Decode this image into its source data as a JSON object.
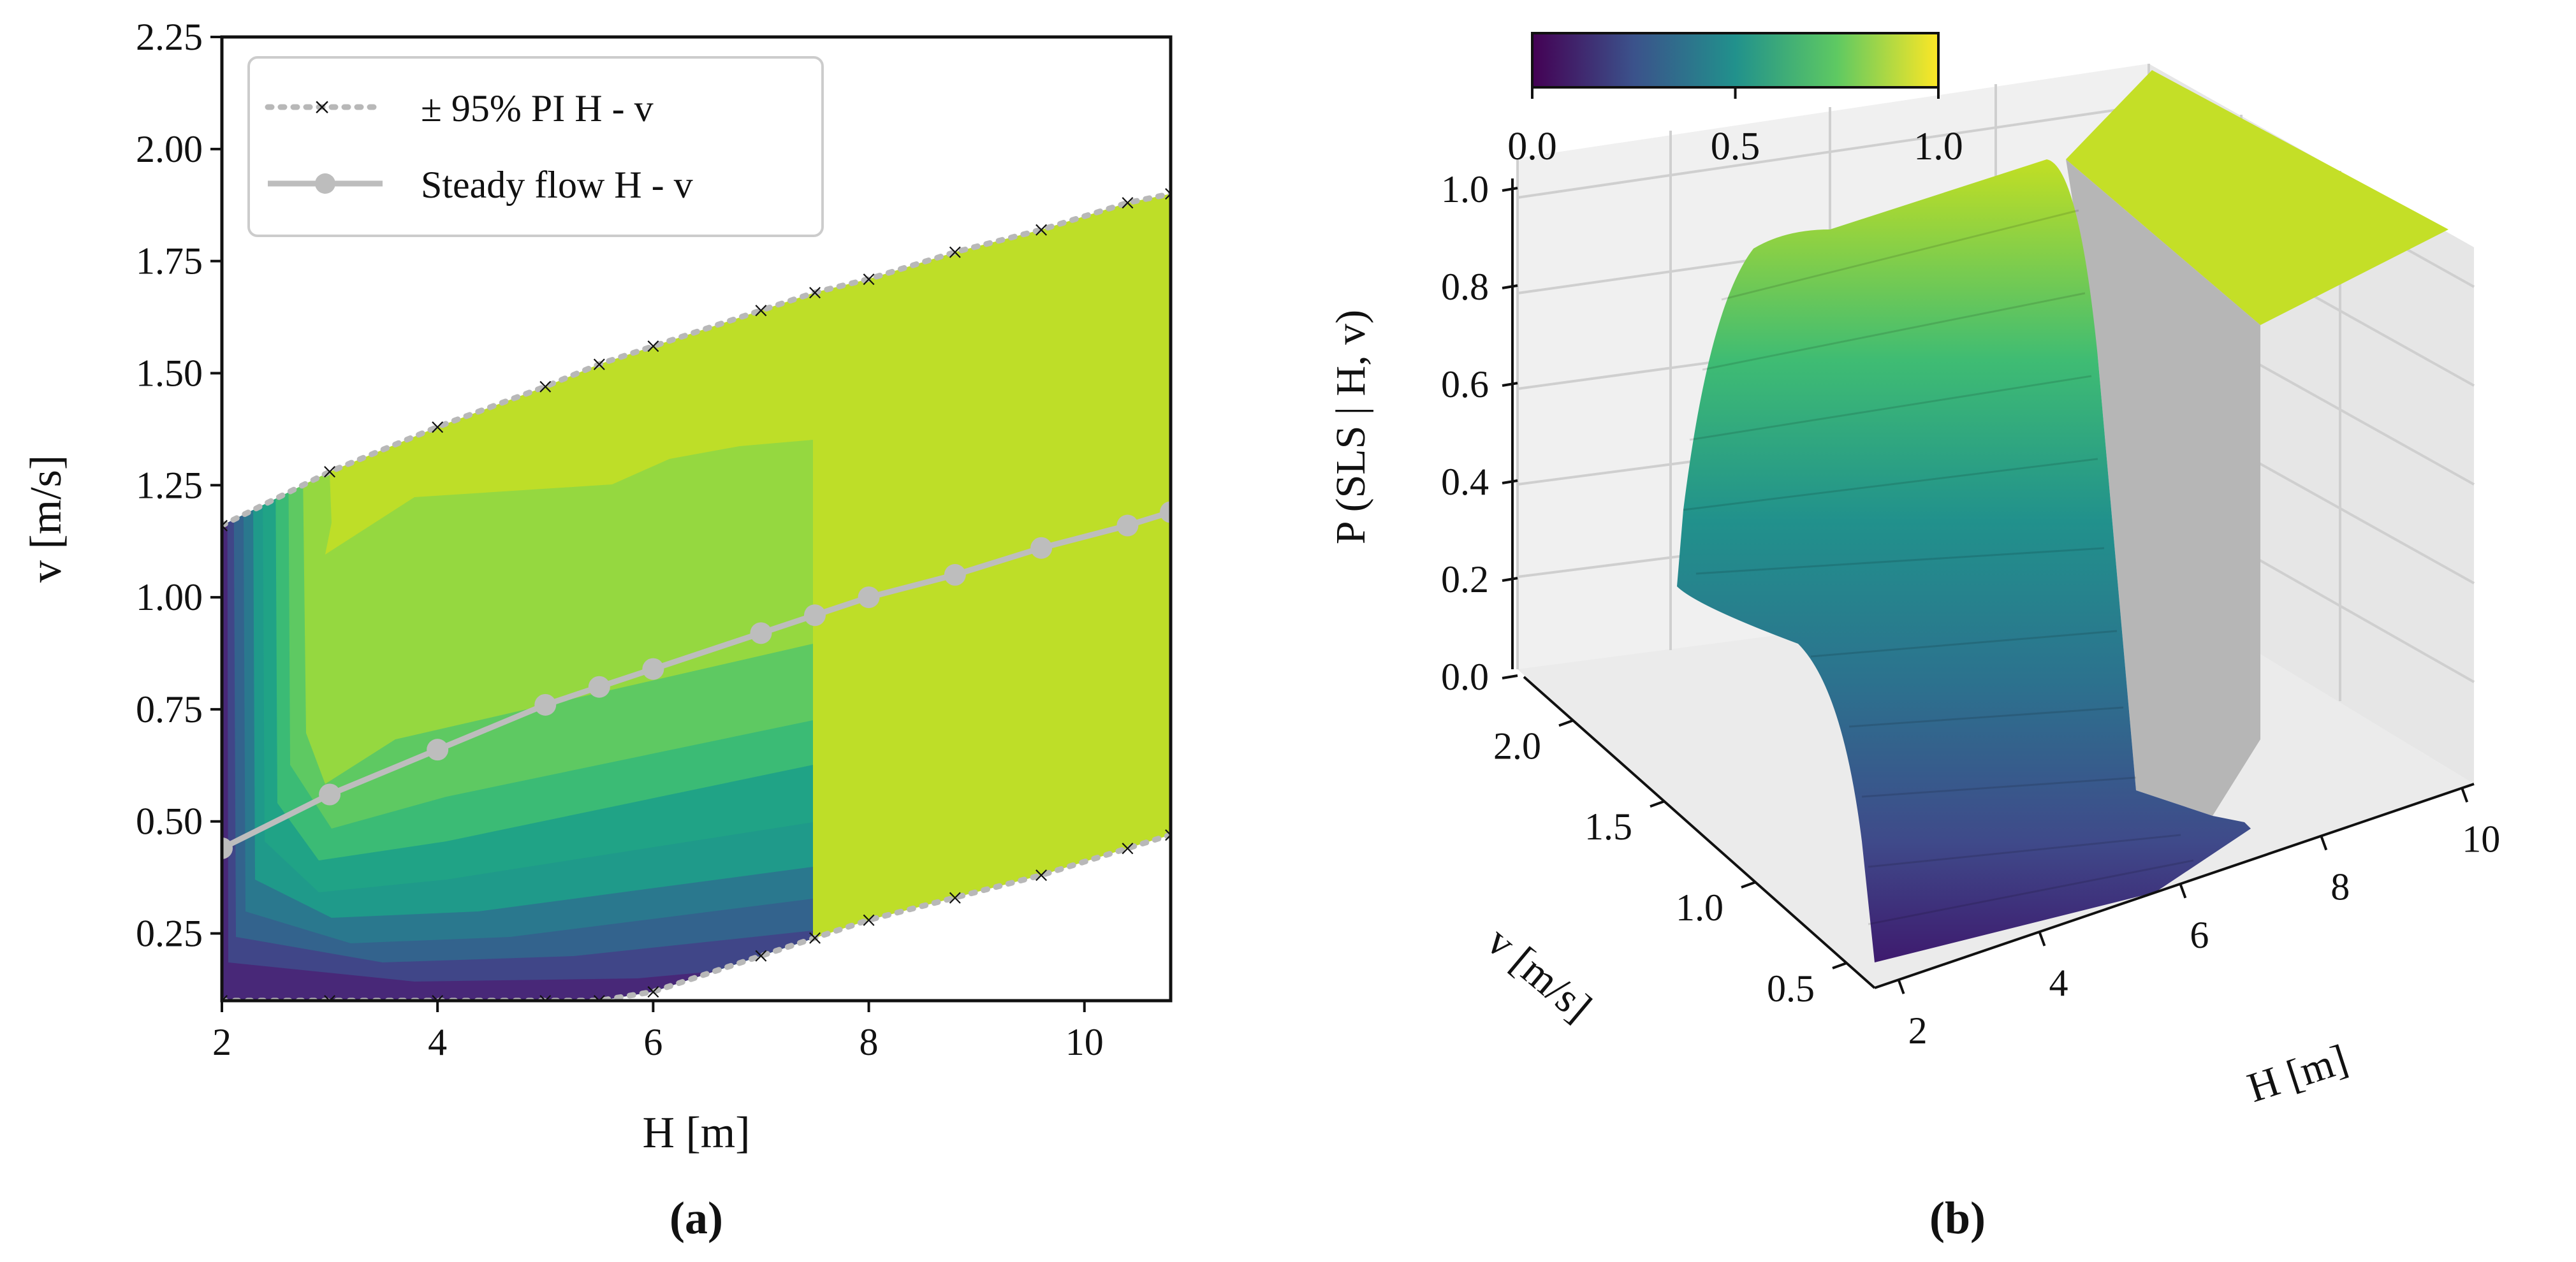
{
  "chart_data": [
    {
      "panel_label": "(a)",
      "type": "contour",
      "xlabel": "H [m]",
      "ylabel": "v [m/s]",
      "xlim": [
        2,
        10.8
      ],
      "ylim": [
        0.1,
        2.25
      ],
      "xticks": [
        "2",
        "4",
        "6",
        "8",
        "10"
      ],
      "yticks": [
        "0.25",
        "0.50",
        "0.75",
        "1.00",
        "1.25",
        "1.50",
        "1.75",
        "2.00",
        "2.25"
      ],
      "xtick_values": [
        2,
        4,
        6,
        8,
        10
      ],
      "ytick_values": [
        0.25,
        0.5,
        0.75,
        1.0,
        1.25,
        1.5,
        1.75,
        2.0,
        2.25
      ],
      "colormap": "viridis",
      "contour_cutoff_H": 7.5,
      "plateau_probability": 1.0,
      "legend": [
        {
          "label": "± 95% PI H - v",
          "style": "dotted-x"
        },
        {
          "label": "Steady flow H - v",
          "style": "solid-circle"
        }
      ],
      "series": [
        {
          "name": "upper 95% PI",
          "x": [
            2,
            3,
            4,
            5,
            5.5,
            6,
            7,
            7.5,
            8,
            8.8,
            9.6,
            10.4,
            10.8
          ],
          "y": [
            1.16,
            1.28,
            1.38,
            1.47,
            1.52,
            1.56,
            1.64,
            1.68,
            1.71,
            1.77,
            1.82,
            1.88,
            1.9
          ]
        },
        {
          "name": "steady flow",
          "x": [
            2,
            3,
            4,
            5,
            5.5,
            6,
            7,
            7.5,
            8,
            8.8,
            9.6,
            10.4,
            10.8
          ],
          "y": [
            0.44,
            0.56,
            0.66,
            0.76,
            0.8,
            0.84,
            0.92,
            0.96,
            1.0,
            1.05,
            1.11,
            1.16,
            1.19
          ]
        },
        {
          "name": "lower 95% PI",
          "x": [
            2,
            3,
            4,
            5,
            5.5,
            6,
            7,
            7.5,
            8,
            8.8,
            9.6,
            10.4,
            10.8
          ],
          "y": [
            0.1,
            0.1,
            0.1,
            0.1,
            0.1,
            0.12,
            0.2,
            0.24,
            0.28,
            0.33,
            0.38,
            0.44,
            0.47
          ]
        }
      ]
    },
    {
      "panel_label": "(b)",
      "type": "surface3d",
      "xlabel": "H [m]",
      "ylabel": "v [m/s]",
      "zlabel": "P (SLS | H, v)",
      "xticks": [
        "2",
        "4",
        "6",
        "8",
        "10"
      ],
      "yticks": [
        "0.5",
        "1.0",
        "1.5",
        "2.0"
      ],
      "zticks": [
        "0.0",
        "0.2",
        "0.4",
        "0.6",
        "0.8",
        "1.0"
      ],
      "zlim": [
        0,
        1
      ],
      "colorbar_ticks": [
        "0.0",
        "0.5",
        "1.0"
      ],
      "colormap": "viridis",
      "surface_H_range": [
        2,
        7.5
      ],
      "plateau_H_range": [
        7.5,
        10.8
      ],
      "plateau_value": 1.0,
      "peak_value_low_H": 1.0,
      "min_value": 0.0
    }
  ]
}
